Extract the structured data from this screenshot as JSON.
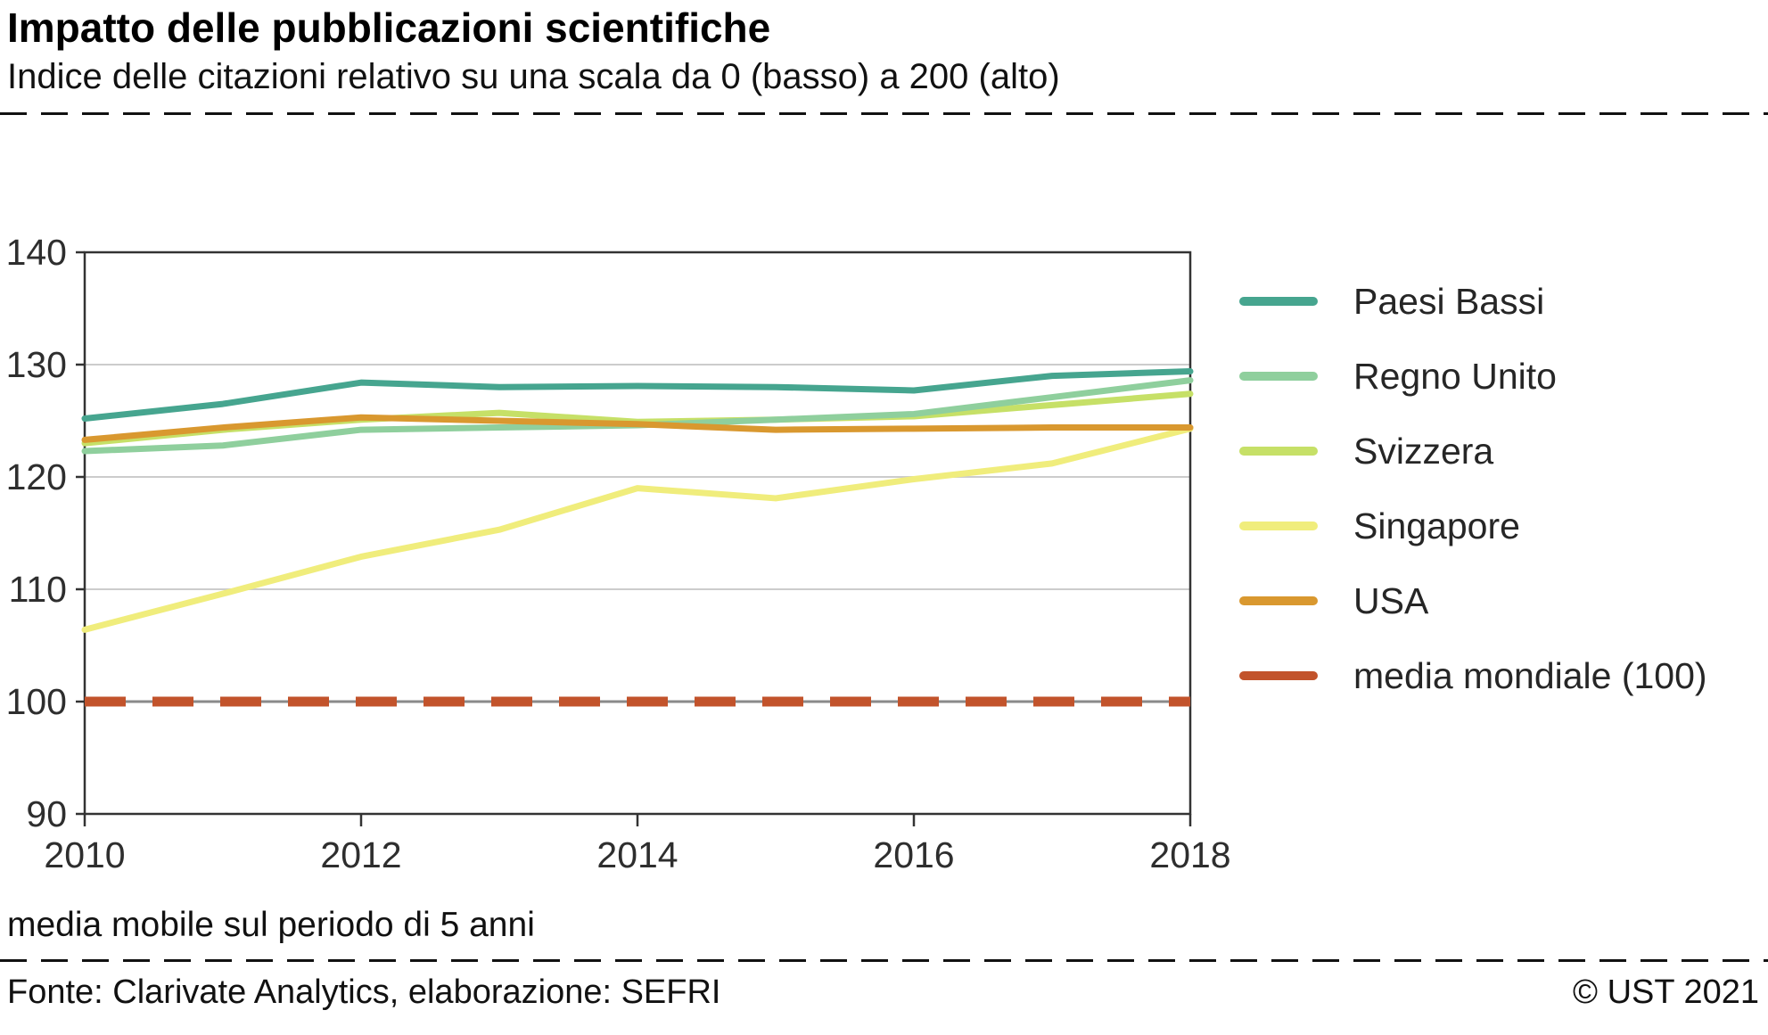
{
  "header": {
    "title": "Impatto delle pubblicazioni scientifiche",
    "subtitle": "Indice delle citazioni relativo su una scala da 0 (basso) a 200 (alto)"
  },
  "note": "media mobile sul periodo di 5 anni",
  "footer": {
    "source": "Fonte: Clarivate Analytics, elaborazione: SEFRI",
    "copyright": "© UST 2021"
  },
  "chart_data": {
    "type": "line",
    "title": "Impatto delle pubblicazioni scientifiche",
    "xlabel": "",
    "ylabel": "",
    "x": [
      2010,
      2011,
      2012,
      2013,
      2014,
      2015,
      2016,
      2017,
      2018
    ],
    "x_ticks": [
      2010,
      2012,
      2014,
      2016,
      2018
    ],
    "xlim": [
      2010,
      2018
    ],
    "ylim": [
      90,
      140
    ],
    "y_ticks": [
      90,
      100,
      110,
      120,
      130,
      140
    ],
    "grid": true,
    "legend_position": "right",
    "draw_order": [
      3,
      2,
      1,
      4,
      0,
      5
    ],
    "series": [
      {
        "name": "Paesi Bassi",
        "color": "#46a58f",
        "dashed": false,
        "values": [
          125.2,
          126.5,
          128.4,
          128.0,
          128.1,
          128.0,
          127.7,
          129.0,
          129.4
        ]
      },
      {
        "name": "Regno Unito",
        "color": "#8fcf9d",
        "dashed": false,
        "values": [
          122.3,
          122.8,
          124.2,
          124.4,
          124.6,
          125.1,
          125.6,
          127.1,
          128.6
        ]
      },
      {
        "name": "Svizzera",
        "color": "#c6e067",
        "dashed": false,
        "values": [
          123.0,
          124.2,
          125.1,
          125.7,
          124.9,
          125.1,
          125.4,
          126.4,
          127.4
        ]
      },
      {
        "name": "Singapore",
        "color": "#f0ed7c",
        "dashed": false,
        "values": [
          106.4,
          109.6,
          112.9,
          115.3,
          119.0,
          118.1,
          119.8,
          121.2,
          124.3
        ]
      },
      {
        "name": "USA",
        "color": "#d9982f",
        "dashed": false,
        "values": [
          123.3,
          124.4,
          125.3,
          125.0,
          124.7,
          124.2,
          124.3,
          124.4,
          124.4
        ]
      },
      {
        "name": "media mondiale (100)",
        "color": "#c2532b",
        "dashed": true,
        "values": [
          100,
          100,
          100,
          100,
          100,
          100,
          100,
          100,
          100
        ]
      }
    ],
    "style": {
      "frame_color": "#333333",
      "grid_color": "#cccccc",
      "baseline_grid_color": "#8a8a8a",
      "axis_text_color": "#2e2e2e"
    }
  }
}
